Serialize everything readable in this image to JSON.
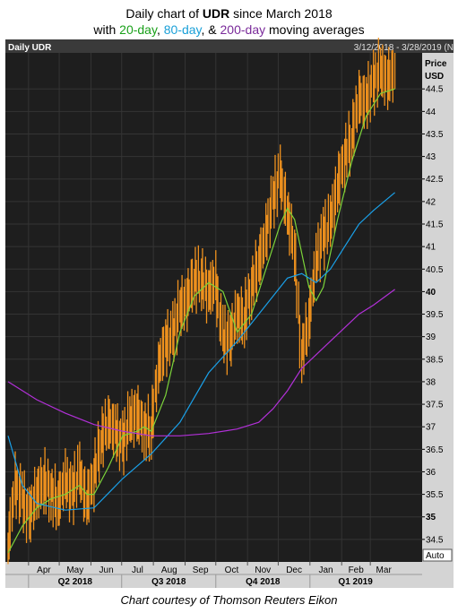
{
  "title": {
    "line1_prefix": "Daily chart of ",
    "ticker": "UDR",
    "line1_suffix": " since March 2018",
    "line2_prefix": "with ",
    "ma20_label": "20-day",
    "sep1": ", ",
    "ma80_label": "80-day",
    "sep2": ", & ",
    "ma200_label": "200-day",
    "line2_suffix": " moving averages"
  },
  "caption": "Chart courtesy of Thomson Reuters Eikon",
  "colors": {
    "background": "#1e1e1e",
    "header": "#3a3a3a",
    "axis_bg": "#d4d4d4",
    "price": "#f0921e",
    "ma20": "#7cd33a",
    "ma80": "#1aa0e8",
    "ma200": "#b230d8"
  },
  "chart_data": {
    "type": "line",
    "panel_title": "Daily UDR",
    "date_range": "3/12/2018 - 3/28/2019 (N",
    "price_label": "Price",
    "currency_label": "USD",
    "auto_label": "Auto",
    "ylim": [
      34.0,
      45.3
    ],
    "y_ticks": [
      "34.5",
      "35",
      "35.5",
      "36",
      "36.5",
      "37",
      "37.5",
      "38",
      "38.5",
      "39",
      "39.5",
      "40",
      "40.5",
      "41",
      "41.5",
      "42",
      "42.5",
      "43",
      "43.5",
      "44",
      "44.5"
    ],
    "y_bold_ticks": [
      "35",
      "40"
    ],
    "months": [
      "Apr",
      "May",
      "Jun",
      "Jul",
      "Aug",
      "Sep",
      "Oct",
      "Nov",
      "Dec",
      "Jan",
      "Feb",
      "Mar"
    ],
    "quarters": [
      "Q2 2018",
      "Q3 2018",
      "Q4 2018",
      "Q1 2019"
    ],
    "x_range": [
      "2018-03-12",
      "2019-03-28"
    ],
    "series": [
      {
        "name": "UDR",
        "style": "daily high-low bars",
        "points": [
          {
            "x": "2018-03-12",
            "y": 34.3
          },
          {
            "x": "2018-03-19",
            "y": 35.7
          },
          {
            "x": "2018-03-26",
            "y": 35.4
          },
          {
            "x": "2018-04-02",
            "y": 35.0
          },
          {
            "x": "2018-04-09",
            "y": 35.5
          },
          {
            "x": "2018-04-16",
            "y": 35.8
          },
          {
            "x": "2018-04-23",
            "y": 35.6
          },
          {
            "x": "2018-04-30",
            "y": 35.3
          },
          {
            "x": "2018-05-07",
            "y": 35.8
          },
          {
            "x": "2018-05-14",
            "y": 35.5
          },
          {
            "x": "2018-05-21",
            "y": 36.0
          },
          {
            "x": "2018-05-28",
            "y": 35.3
          },
          {
            "x": "2018-06-04",
            "y": 35.9
          },
          {
            "x": "2018-06-11",
            "y": 36.7
          },
          {
            "x": "2018-06-18",
            "y": 37.1
          },
          {
            "x": "2018-06-25",
            "y": 36.9
          },
          {
            "x": "2018-07-02",
            "y": 36.6
          },
          {
            "x": "2018-07-09",
            "y": 37.1
          },
          {
            "x": "2018-07-16",
            "y": 37.3
          },
          {
            "x": "2018-07-23",
            "y": 37.0
          },
          {
            "x": "2018-07-30",
            "y": 36.9
          },
          {
            "x": "2018-08-06",
            "y": 38.3
          },
          {
            "x": "2018-08-13",
            "y": 38.8
          },
          {
            "x": "2018-08-20",
            "y": 39.0
          },
          {
            "x": "2018-08-27",
            "y": 39.6
          },
          {
            "x": "2018-09-03",
            "y": 39.8
          },
          {
            "x": "2018-09-10",
            "y": 40.3
          },
          {
            "x": "2018-09-17",
            "y": 40.3
          },
          {
            "x": "2018-09-24",
            "y": 40.0
          },
          {
            "x": "2018-10-01",
            "y": 40.2
          },
          {
            "x": "2018-10-08",
            "y": 39.0
          },
          {
            "x": "2018-10-15",
            "y": 38.9
          },
          {
            "x": "2018-10-22",
            "y": 39.5
          },
          {
            "x": "2018-10-29",
            "y": 39.4
          },
          {
            "x": "2018-11-05",
            "y": 40.1
          },
          {
            "x": "2018-11-12",
            "y": 40.6
          },
          {
            "x": "2018-11-19",
            "y": 41.2
          },
          {
            "x": "2018-11-26",
            "y": 42.0
          },
          {
            "x": "2018-12-03",
            "y": 42.6
          },
          {
            "x": "2018-12-10",
            "y": 41.8
          },
          {
            "x": "2018-12-17",
            "y": 41.0
          },
          {
            "x": "2018-12-24",
            "y": 38.6
          },
          {
            "x": "2018-12-31",
            "y": 39.3
          },
          {
            "x": "2019-01-07",
            "y": 40.6
          },
          {
            "x": "2019-01-14",
            "y": 41.2
          },
          {
            "x": "2019-01-21",
            "y": 41.5
          },
          {
            "x": "2019-01-28",
            "y": 42.3
          },
          {
            "x": "2019-02-04",
            "y": 43.0
          },
          {
            "x": "2019-02-11",
            "y": 43.4
          },
          {
            "x": "2019-02-18",
            "y": 44.3
          },
          {
            "x": "2019-02-25",
            "y": 44.2
          },
          {
            "x": "2019-03-04",
            "y": 44.6
          },
          {
            "x": "2019-03-11",
            "y": 44.9
          },
          {
            "x": "2019-03-18",
            "y": 44.7
          },
          {
            "x": "2019-03-25",
            "y": 44.9
          }
        ]
      },
      {
        "name": "20-day",
        "points": [
          {
            "x": "2018-03-12",
            "y": 34.2
          },
          {
            "x": "2018-03-26",
            "y": 34.8
          },
          {
            "x": "2018-04-09",
            "y": 35.2
          },
          {
            "x": "2018-04-23",
            "y": 35.4
          },
          {
            "x": "2018-05-07",
            "y": 35.5
          },
          {
            "x": "2018-05-21",
            "y": 35.7
          },
          {
            "x": "2018-05-28",
            "y": 35.5
          },
          {
            "x": "2018-06-04",
            "y": 35.5
          },
          {
            "x": "2018-06-18",
            "y": 36.1
          },
          {
            "x": "2018-07-02",
            "y": 36.8
          },
          {
            "x": "2018-07-16",
            "y": 36.9
          },
          {
            "x": "2018-07-23",
            "y": 37.0
          },
          {
            "x": "2018-07-30",
            "y": 36.9
          },
          {
            "x": "2018-08-13",
            "y": 37.7
          },
          {
            "x": "2018-08-27",
            "y": 39.1
          },
          {
            "x": "2018-09-10",
            "y": 39.9
          },
          {
            "x": "2018-09-24",
            "y": 40.2
          },
          {
            "x": "2018-10-08",
            "y": 40.0
          },
          {
            "x": "2018-10-22",
            "y": 39.1
          },
          {
            "x": "2018-11-05",
            "y": 39.5
          },
          {
            "x": "2018-11-19",
            "y": 40.5
          },
          {
            "x": "2018-12-03",
            "y": 41.5
          },
          {
            "x": "2018-12-10",
            "y": 41.85
          },
          {
            "x": "2018-12-17",
            "y": 41.6
          },
          {
            "x": "2018-12-31",
            "y": 40.1
          },
          {
            "x": "2019-01-07",
            "y": 39.8
          },
          {
            "x": "2019-01-14",
            "y": 40.1
          },
          {
            "x": "2019-01-28",
            "y": 41.6
          },
          {
            "x": "2019-02-11",
            "y": 42.9
          },
          {
            "x": "2019-02-25",
            "y": 43.9
          },
          {
            "x": "2019-03-11",
            "y": 44.4
          },
          {
            "x": "2019-03-25",
            "y": 44.5
          }
        ]
      },
      {
        "name": "80-day",
        "points": [
          {
            "x": "2018-03-12",
            "y": 36.8
          },
          {
            "x": "2018-03-26",
            "y": 35.7
          },
          {
            "x": "2018-04-09",
            "y": 35.3
          },
          {
            "x": "2018-05-07",
            "y": 35.15
          },
          {
            "x": "2018-06-04",
            "y": 35.2
          },
          {
            "x": "2018-07-02",
            "y": 35.85
          },
          {
            "x": "2018-07-30",
            "y": 36.4
          },
          {
            "x": "2018-08-27",
            "y": 37.1
          },
          {
            "x": "2018-09-24",
            "y": 38.2
          },
          {
            "x": "2018-10-22",
            "y": 38.9
          },
          {
            "x": "2018-11-19",
            "y": 39.7
          },
          {
            "x": "2018-12-10",
            "y": 40.3
          },
          {
            "x": "2018-12-24",
            "y": 40.4
          },
          {
            "x": "2019-01-07",
            "y": 40.2
          },
          {
            "x": "2019-01-21",
            "y": 40.5
          },
          {
            "x": "2019-02-04",
            "y": 41.0
          },
          {
            "x": "2019-02-18",
            "y": 41.5
          },
          {
            "x": "2019-03-04",
            "y": 41.8
          },
          {
            "x": "2019-03-25",
            "y": 42.2
          }
        ]
      },
      {
        "name": "200-day",
        "points": [
          {
            "x": "2018-03-12",
            "y": 38.0
          },
          {
            "x": "2018-04-09",
            "y": 37.6
          },
          {
            "x": "2018-05-07",
            "y": 37.3
          },
          {
            "x": "2018-06-04",
            "y": 37.05
          },
          {
            "x": "2018-07-02",
            "y": 36.9
          },
          {
            "x": "2018-07-30",
            "y": 36.8
          },
          {
            "x": "2018-08-27",
            "y": 36.8
          },
          {
            "x": "2018-09-24",
            "y": 36.85
          },
          {
            "x": "2018-10-22",
            "y": 36.95
          },
          {
            "x": "2018-11-12",
            "y": 37.1
          },
          {
            "x": "2018-11-26",
            "y": 37.4
          },
          {
            "x": "2018-12-10",
            "y": 37.8
          },
          {
            "x": "2018-12-24",
            "y": 38.3
          },
          {
            "x": "2019-01-07",
            "y": 38.6
          },
          {
            "x": "2019-01-21",
            "y": 38.9
          },
          {
            "x": "2019-02-04",
            "y": 39.2
          },
          {
            "x": "2019-02-18",
            "y": 39.5
          },
          {
            "x": "2019-03-04",
            "y": 39.7
          },
          {
            "x": "2019-03-25",
            "y": 40.05
          }
        ]
      }
    ]
  }
}
